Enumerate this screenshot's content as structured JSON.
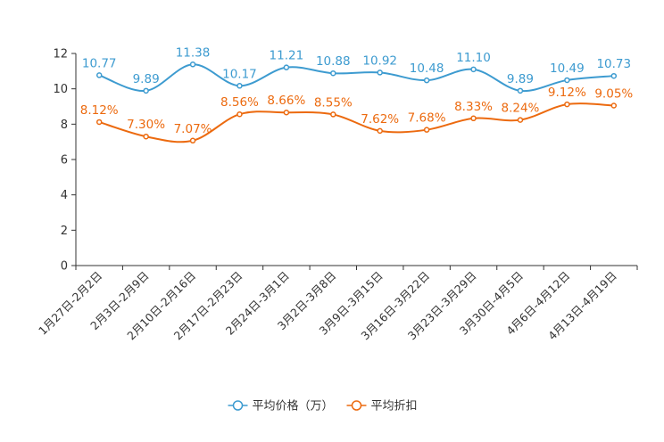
{
  "chart_data": {
    "type": "line",
    "title": "",
    "xlabel": "",
    "ylabel": "",
    "ylim": [
      0,
      12
    ],
    "yticks": [
      0,
      2,
      4,
      6,
      8,
      10,
      12
    ],
    "grid": false,
    "legend_position": "bottom-center",
    "categories": [
      "1月27日-2月2日",
      "2月3日-2月9日",
      "2月10日-2月16日",
      "2月17日-2月23日",
      "2月24日-3月1日",
      "3月2日-3月8日",
      "3月9日-3月15日",
      "3月16日-3月22日",
      "3月23日-3月29日",
      "3月30日-4月5日",
      "4月6日-4月12日",
      "4月13日-4月19日"
    ],
    "series": [
      {
        "name": "平均价格（万）",
        "color": "#3d9bd0",
        "values": [
          10.77,
          9.89,
          11.38,
          10.17,
          11.21,
          10.88,
          10.92,
          10.48,
          11.1,
          9.89,
          10.49,
          10.73
        ],
        "labels": [
          "10.77",
          "9.89",
          "11.38",
          "10.17",
          "11.21",
          "10.88",
          "10.92",
          "10.48",
          "11.10",
          "9.89",
          "10.49",
          "10.73"
        ]
      },
      {
        "name": "平均折扣",
        "color": "#ec6a0f",
        "values": [
          8.12,
          7.3,
          7.07,
          8.56,
          8.66,
          8.55,
          7.62,
          7.68,
          8.33,
          8.24,
          9.12,
          9.05
        ],
        "labels": [
          "8.12%",
          "7.30%",
          "7.07%",
          "8.56%",
          "8.66%",
          "8.55%",
          "7.62%",
          "7.68%",
          "8.33%",
          "8.24%",
          "9.12%",
          "9.05%"
        ]
      }
    ]
  }
}
